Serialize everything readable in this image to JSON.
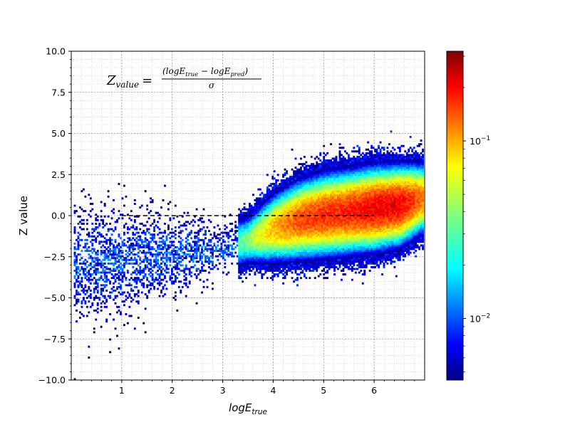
{
  "chart_data": {
    "type": "heatmap",
    "title": "",
    "xlabel": "logE_true",
    "ylabel": "Z value",
    "xlim": [
      0,
      7
    ],
    "ylim": [
      -10,
      10
    ],
    "x_ticks": [
      1,
      2,
      3,
      4,
      5,
      6
    ],
    "y_ticks": [
      -10.0,
      -7.5,
      -5.0,
      -2.5,
      0.0,
      2.5,
      5.0,
      7.5,
      10.0
    ],
    "y_tick_labels": [
      "−10.0",
      "−7.5",
      "−5.0",
      "−2.5",
      "0.0",
      "2.5",
      "5.0",
      "7.5",
      "10.0"
    ],
    "grid": true,
    "minor_grid": true,
    "colormap": "jet",
    "colorbar": {
      "scale": "log",
      "range": [
        0.0045,
        0.32
      ],
      "ticks": [
        0.01,
        0.1
      ],
      "tick_labels": [
        "10^-2",
        "10^-1"
      ]
    },
    "reference_line": {
      "x": [
        1,
        6
      ],
      "y": 0,
      "style": "dashed",
      "color": "#000000"
    },
    "annotation": {
      "lhs": "Z",
      "lhs_sub": "value",
      "eq": "=",
      "num_a": "(logE",
      "num_a_sub": "true",
      "num_mid": " − logE",
      "num_b_sub": "pred",
      "num_close": ")",
      "den": "σ"
    },
    "density_ridge": [
      {
        "x": 0.5,
        "z_center": -3.0,
        "z_sigma": 1.8,
        "density": 0.006
      },
      {
        "x": 1.0,
        "z_center": -2.8,
        "z_sigma": 1.7,
        "density": 0.008
      },
      {
        "x": 1.5,
        "z_center": -2.6,
        "z_sigma": 1.5,
        "density": 0.009
      },
      {
        "x": 2.0,
        "z_center": -2.4,
        "z_sigma": 1.3,
        "density": 0.011
      },
      {
        "x": 2.5,
        "z_center": -2.2,
        "z_sigma": 1.1,
        "density": 0.013
      },
      {
        "x": 3.0,
        "z_center": -2.0,
        "z_sigma": 0.8,
        "density": 0.018
      },
      {
        "x": 3.5,
        "z_center": -1.5,
        "z_sigma": 0.7,
        "density": 0.04
      },
      {
        "x": 4.0,
        "z_center": -0.8,
        "z_sigma": 0.9,
        "density": 0.09
      },
      {
        "x": 4.5,
        "z_center": -0.3,
        "z_sigma": 1.0,
        "density": 0.14
      },
      {
        "x": 5.0,
        "z_center": 0.0,
        "z_sigma": 1.05,
        "density": 0.16
      },
      {
        "x": 5.5,
        "z_center": 0.2,
        "z_sigma": 1.05,
        "density": 0.17
      },
      {
        "x": 6.0,
        "z_center": 0.4,
        "z_sigma": 1.05,
        "density": 0.2
      },
      {
        "x": 6.5,
        "z_center": 0.6,
        "z_sigma": 1.0,
        "density": 0.2
      },
      {
        "x": 6.9,
        "z_center": 1.0,
        "z_sigma": 0.9,
        "density": 0.12
      }
    ]
  }
}
